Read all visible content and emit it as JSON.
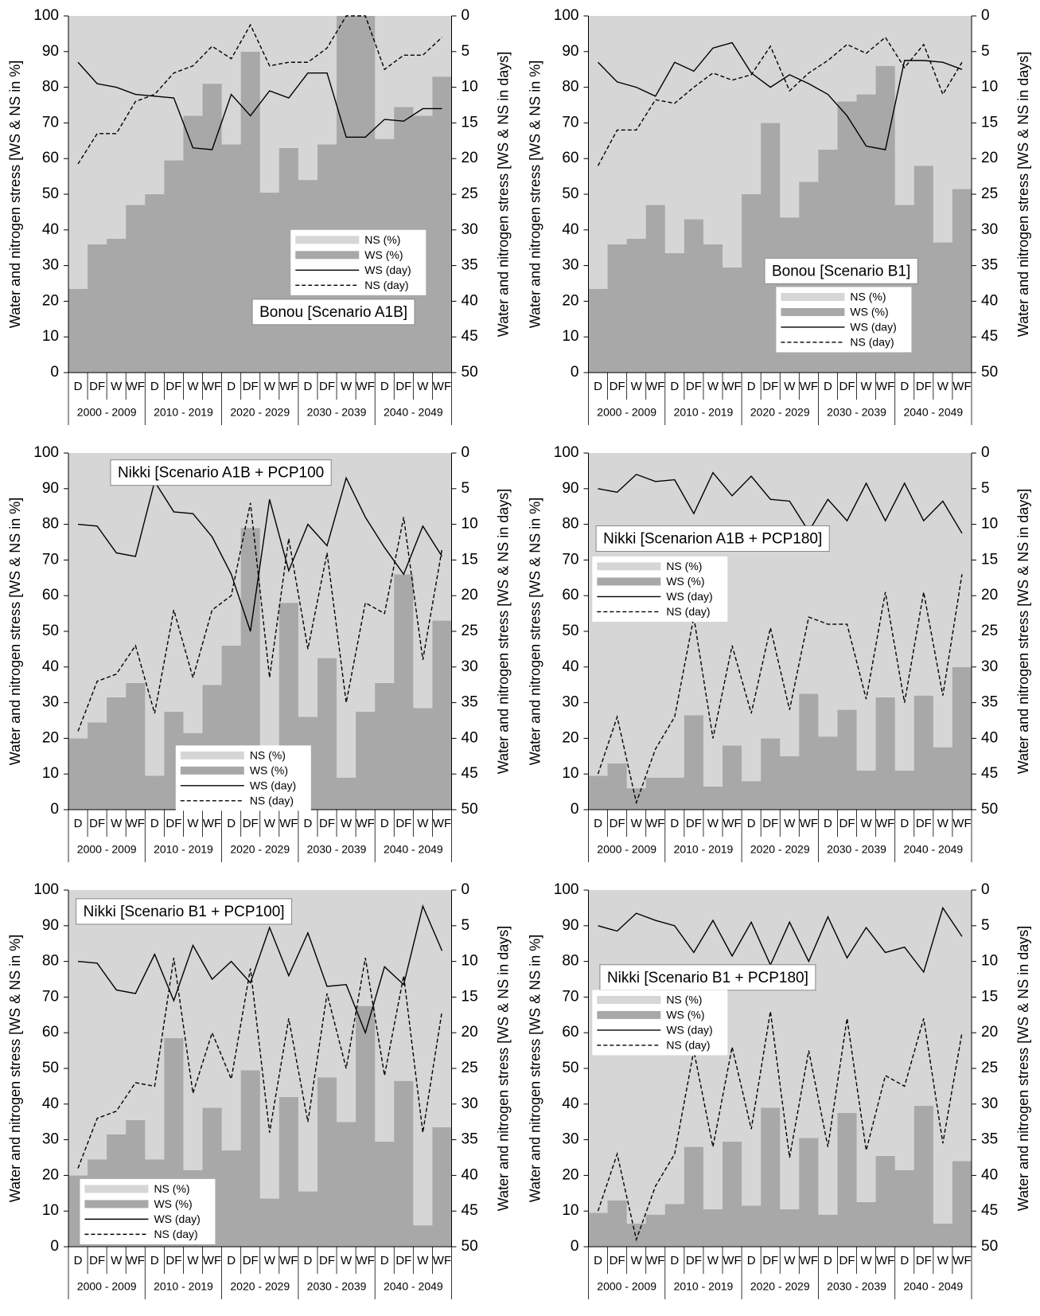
{
  "chart_data": [
    {
      "type": "bar",
      "stacked": true,
      "title": "Bonou [Scenario A1B]",
      "ylabel": "Water and nitrogen stress [WS & NS in %]",
      "y2label": "Water and nitrogen stress [WS & NS in days]",
      "categories": [
        "D",
        "DF",
        "W",
        "WF",
        "D",
        "DF",
        "W",
        "WF",
        "D",
        "DF",
        "W",
        "WF",
        "D",
        "DF",
        "W",
        "WF",
        "D",
        "DF",
        "W",
        "WF"
      ],
      "groups": [
        "2000 - 2009",
        "2010 - 2019",
        "2020 - 2029",
        "2030 - 2039",
        "2040 - 2049"
      ],
      "ylim": [
        0,
        100
      ],
      "yticks": [
        0,
        10,
        20,
        30,
        40,
        50,
        60,
        70,
        80,
        90,
        100
      ],
      "y2lim": [
        50,
        0
      ],
      "y2ticks": [
        0,
        5,
        10,
        15,
        20,
        25,
        30,
        35,
        40,
        45,
        50
      ],
      "series": [
        {
          "name": "NS (%)",
          "type": "bar",
          "color": "#d6d6d6",
          "values": [
            76.5,
            64,
            62.5,
            53,
            50,
            40.5,
            28,
            19,
            36,
            10,
            49.5,
            37,
            46,
            36,
            0,
            0,
            34.5,
            25.5,
            28,
            17
          ]
        },
        {
          "name": "WS (%)",
          "type": "bar",
          "color": "#a8a8a8",
          "values": [
            23.5,
            36,
            37.5,
            47,
            50,
            59.5,
            72,
            81,
            64,
            90,
            50.5,
            63,
            54,
            64,
            100,
            100,
            65.5,
            74.5,
            72,
            83
          ]
        },
        {
          "name": "WS (day)",
          "type": "line",
          "axis": "y2",
          "color": "#000000",
          "dash": "solid",
          "values": [
            6.5,
            9.5,
            10,
            11,
            11.25,
            11.5,
            18.5,
            18.75,
            11,
            14,
            10.5,
            11.5,
            8,
            8,
            17,
            17,
            14.5,
            14.75,
            13,
            13
          ]
        },
        {
          "name": "NS (day)",
          "type": "line",
          "axis": "y2",
          "color": "#000000",
          "dash": "dashed",
          "values": [
            20.75,
            16.5,
            16.5,
            12,
            11,
            8,
            7,
            4.25,
            6,
            1.25,
            7,
            6.5,
            6.5,
            4.5,
            0,
            0,
            7.5,
            5.5,
            5.5,
            3
          ]
        }
      ]
    },
    {
      "type": "bar",
      "stacked": true,
      "title": "Bonou [Scenario B1]",
      "ylabel": "Water and nitrogen stress [WS & NS in %]",
      "y2label": "Water and nitrogen stress [WS & NS in days]",
      "categories": [
        "D",
        "DF",
        "W",
        "WF",
        "D",
        "DF",
        "W",
        "WF",
        "D",
        "DF",
        "W",
        "WF",
        "D",
        "DF",
        "W",
        "WF",
        "D",
        "DF",
        "W",
        "WF"
      ],
      "groups": [
        "2000 - 2009",
        "2010 - 2019",
        "2020 - 2029",
        "2030 - 2039",
        "2040 - 2049"
      ],
      "ylim": [
        0,
        100
      ],
      "yticks": [
        0,
        10,
        20,
        30,
        40,
        50,
        60,
        70,
        80,
        90,
        100
      ],
      "y2lim": [
        50,
        0
      ],
      "y2ticks": [
        0,
        5,
        10,
        15,
        20,
        25,
        30,
        35,
        40,
        45,
        50
      ],
      "series": [
        {
          "name": "NS (%)",
          "type": "bar",
          "color": "#d6d6d6",
          "values": [
            76.5,
            64,
            62.5,
            53,
            66.5,
            57,
            64,
            70.5,
            50,
            30,
            56.5,
            46.5,
            37.5,
            24,
            22,
            14,
            53,
            42,
            63.5,
            48.5
          ]
        },
        {
          "name": "WS (%)",
          "type": "bar",
          "color": "#a8a8a8",
          "values": [
            23.5,
            36,
            37.5,
            47,
            33.5,
            43,
            36,
            29.5,
            50,
            70,
            43.5,
            53.5,
            62.5,
            76,
            78,
            86,
            47,
            58,
            36.5,
            51.5
          ]
        },
        {
          "name": "WS (day)",
          "type": "line",
          "axis": "y2",
          "color": "#000000",
          "dash": "solid",
          "values": [
            6.5,
            9.25,
            10,
            11.25,
            6.5,
            7.75,
            4.5,
            3.75,
            8,
            10,
            8.25,
            9.5,
            11,
            14,
            18.25,
            18.75,
            6.25,
            6.25,
            6.5,
            7.5
          ]
        },
        {
          "name": "NS (day)",
          "type": "line",
          "axis": "y2",
          "color": "#000000",
          "dash": "dashed",
          "values": [
            21,
            16,
            16,
            11.75,
            12.25,
            10,
            8,
            9,
            8.25,
            4.25,
            10.5,
            8,
            6.25,
            4,
            5.25,
            3,
            7.25,
            4,
            11,
            6.5
          ]
        }
      ]
    },
    {
      "type": "bar",
      "stacked": true,
      "title": "Nikki [Scenario A1B + PCP100",
      "ylabel": "Water and nitrogen stress [WS & NS in %]",
      "y2label": "Water and nitrogen stress [WS & NS in days]",
      "categories": [
        "D",
        "DF",
        "W",
        "WF",
        "D",
        "DF",
        "W",
        "WF",
        "D",
        "DF",
        "W",
        "WF",
        "D",
        "DF",
        "W",
        "WF",
        "D",
        "DF",
        "W",
        "WF"
      ],
      "groups": [
        "2000 - 2009",
        "2010 - 2019",
        "2020 - 2029",
        "2030 - 2039",
        "2040 - 2049"
      ],
      "ylim": [
        0,
        100
      ],
      "yticks": [
        0,
        10,
        20,
        30,
        40,
        50,
        60,
        70,
        80,
        90,
        100
      ],
      "y2lim": [
        50,
        0
      ],
      "y2ticks": [
        0,
        5,
        10,
        15,
        20,
        25,
        30,
        35,
        40,
        45,
        50
      ],
      "series": [
        {
          "name": "NS (%)",
          "type": "bar",
          "color": "#d6d6d6",
          "values": [
            80,
            75.5,
            68.5,
            64.5,
            90.5,
            72.5,
            78.5,
            65,
            54,
            21,
            82,
            42,
            74,
            57.5,
            91,
            72.5,
            64.5,
            34,
            71.5,
            47
          ]
        },
        {
          "name": "WS (%)",
          "type": "bar",
          "color": "#a8a8a8",
          "values": [
            20,
            24.5,
            31.5,
            35.5,
            9.5,
            27.5,
            21.5,
            35,
            46,
            79,
            18,
            58,
            26,
            42.5,
            9,
            27.5,
            35.5,
            66,
            28.5,
            53
          ]
        },
        {
          "name": "WS (day)",
          "type": "line",
          "axis": "y2",
          "color": "#000000",
          "dash": "solid",
          "values": [
            10,
            10.25,
            14,
            14.5,
            4,
            8.25,
            8.5,
            11.75,
            17,
            25,
            6.5,
            16.5,
            10,
            13,
            3.5,
            9,
            13.25,
            17,
            10.25,
            14.5
          ]
        },
        {
          "name": "NS (day)",
          "type": "line",
          "axis": "y2",
          "color": "#000000",
          "dash": "dashed",
          "values": [
            39,
            32,
            31,
            27,
            36.5,
            22,
            31.5,
            22,
            20,
            7,
            31.5,
            12,
            27.5,
            14,
            35,
            21,
            22.5,
            9,
            29,
            13.5
          ]
        }
      ]
    },
    {
      "type": "bar",
      "stacked": true,
      "title": "Nikki [Scenarion A1B + PCP180]",
      "ylabel": "Water and nitrogen stress [WS & NS in %]",
      "y2label": "Water and nitrogen stress [WS & NS in days]",
      "categories": [
        "D",
        "DF",
        "W",
        "WF",
        "D",
        "DF",
        "W",
        "WF",
        "D",
        "DF",
        "W",
        "WF",
        "D",
        "DF",
        "W",
        "WF",
        "D",
        "DF",
        "W",
        "WF"
      ],
      "groups": [
        "2000 - 2009",
        "2010 - 2019",
        "2020 - 2029",
        "2030 - 2039",
        "2040 - 2049"
      ],
      "ylim": [
        0,
        100
      ],
      "yticks": [
        0,
        10,
        20,
        30,
        40,
        50,
        60,
        70,
        80,
        90,
        100
      ],
      "y2lim": [
        50,
        0
      ],
      "y2ticks": [
        0,
        5,
        10,
        15,
        20,
        25,
        30,
        35,
        40,
        45,
        50
      ],
      "series": [
        {
          "name": "NS (%)",
          "type": "bar",
          "color": "#d6d6d6",
          "values": [
            90.5,
            87,
            94,
            91,
            91,
            73.5,
            93.5,
            82,
            92,
            80,
            85,
            67.5,
            79.5,
            72,
            89,
            68.5,
            89,
            68,
            82.5,
            60
          ]
        },
        {
          "name": "WS (%)",
          "type": "bar",
          "color": "#a8a8a8",
          "values": [
            9.5,
            13,
            6,
            9,
            9,
            26.5,
            6.5,
            18,
            8,
            20,
            15,
            32.5,
            20.5,
            28,
            11,
            31.5,
            11,
            32,
            17.5,
            40
          ]
        },
        {
          "name": "WS (day)",
          "type": "line",
          "axis": "y2",
          "color": "#000000",
          "dash": "solid",
          "values": [
            5,
            5.5,
            3,
            4,
            3.75,
            8.5,
            2.75,
            6,
            3.25,
            6.5,
            6.75,
            11,
            6.5,
            9.5,
            4.25,
            9.5,
            4.25,
            9.5,
            6.75,
            11.25
          ]
        },
        {
          "name": "NS (day)",
          "type": "line",
          "axis": "y2",
          "color": "#000000",
          "dash": "dashed",
          "values": [
            45,
            37,
            49,
            41.5,
            37,
            23,
            40,
            27,
            36.5,
            24.5,
            36,
            23,
            24,
            24,
            34.5,
            19.5,
            35,
            19.5,
            34,
            17
          ]
        }
      ]
    },
    {
      "type": "bar",
      "stacked": true,
      "title": "Nikki [Scenario B1 + PCP100]",
      "ylabel": "Water and nitrogen stress [WS & NS in %]",
      "y2label": "Water and nitrogen stress [WS & NS in days]",
      "categories": [
        "D",
        "DF",
        "W",
        "WF",
        "D",
        "DF",
        "W",
        "WF",
        "D",
        "DF",
        "W",
        "WF",
        "D",
        "DF",
        "W",
        "WF",
        "D",
        "DF",
        "W",
        "WF"
      ],
      "groups": [
        "2000 - 2009",
        "2010 - 2019",
        "2020 - 2029",
        "2030 - 2039",
        "2040 - 2049"
      ],
      "ylim": [
        0,
        100
      ],
      "yticks": [
        0,
        10,
        20,
        30,
        40,
        50,
        60,
        70,
        80,
        90,
        100
      ],
      "y2lim": [
        50,
        0
      ],
      "y2ticks": [
        0,
        5,
        10,
        15,
        20,
        25,
        30,
        35,
        40,
        45,
        50
      ],
      "series": [
        {
          "name": "NS (%)",
          "type": "bar",
          "color": "#d6d6d6",
          "values": [
            80,
            75.5,
            68.5,
            64.5,
            75.5,
            41.5,
            78.5,
            61,
            73,
            50.5,
            86.5,
            58,
            84.5,
            52.5,
            65,
            32.5,
            70.5,
            53.5,
            94,
            66.5
          ]
        },
        {
          "name": "WS (%)",
          "type": "bar",
          "color": "#a8a8a8",
          "values": [
            20,
            24.5,
            31.5,
            35.5,
            24.5,
            58.5,
            21.5,
            39,
            27,
            49.5,
            13.5,
            42,
            15.5,
            47.5,
            35,
            67.5,
            29.5,
            46.5,
            6,
            33.5
          ]
        },
        {
          "name": "WS (day)",
          "type": "line",
          "axis": "y2",
          "color": "#000000",
          "dash": "solid",
          "values": [
            10,
            10.25,
            14,
            14.5,
            9,
            15.5,
            7.75,
            12.5,
            10,
            13,
            5.25,
            12,
            6,
            13.5,
            13.25,
            20,
            10.75,
            13.25,
            2.25,
            8.5
          ]
        },
        {
          "name": "NS (day)",
          "type": "line",
          "axis": "y2",
          "color": "#000000",
          "dash": "dashed",
          "values": [
            39,
            32,
            31,
            27,
            27.5,
            9.5,
            28.5,
            20,
            26.5,
            11,
            34,
            18,
            32.5,
            14.5,
            25,
            9.5,
            26,
            12,
            34,
            17
          ]
        }
      ]
    },
    {
      "type": "bar",
      "stacked": true,
      "title": "Nikki [Scenario B1 + PCP180]",
      "ylabel": "Water and nitrogen stress [WS & NS in %]",
      "y2label": "Water and nitrogen stress [WS & NS in days]",
      "categories": [
        "D",
        "DF",
        "W",
        "WF",
        "D",
        "DF",
        "W",
        "WF",
        "D",
        "DF",
        "W",
        "WF",
        "D",
        "DF",
        "W",
        "WF",
        "D",
        "DF",
        "W",
        "WF"
      ],
      "groups": [
        "2000 - 2009",
        "2010 - 2019",
        "2020 - 2029",
        "2030 - 2039",
        "2040 - 2049"
      ],
      "ylim": [
        0,
        100
      ],
      "yticks": [
        0,
        10,
        20,
        30,
        40,
        50,
        60,
        70,
        80,
        90,
        100
      ],
      "y2lim": [
        50,
        0
      ],
      "y2ticks": [
        0,
        5,
        10,
        15,
        20,
        25,
        30,
        35,
        40,
        45,
        50
      ],
      "series": [
        {
          "name": "NS (%)",
          "type": "bar",
          "color": "#d6d6d6",
          "values": [
            90.5,
            87,
            93.5,
            91,
            88,
            72,
            89.5,
            70.5,
            88.5,
            61,
            89.5,
            69.5,
            91,
            62.5,
            87.5,
            74.5,
            78.5,
            60.5,
            93.5,
            76
          ]
        },
        {
          "name": "WS (%)",
          "type": "bar",
          "color": "#a8a8a8",
          "values": [
            9.5,
            13,
            6.5,
            9,
            12,
            28,
            10.5,
            29.5,
            11.5,
            39,
            10.5,
            30.5,
            9,
            37.5,
            12.5,
            25.5,
            21.5,
            39.5,
            6.5,
            24
          ]
        },
        {
          "name": "WS (day)",
          "type": "line",
          "axis": "y2",
          "color": "#000000",
          "dash": "solid",
          "values": [
            5,
            5.75,
            3.25,
            4.25,
            5,
            8.75,
            4.25,
            9.25,
            4.5,
            10.5,
            4.5,
            10,
            3.75,
            9.5,
            5.25,
            8.75,
            8,
            11.5,
            2.5,
            6.5
          ]
        },
        {
          "name": "NS (day)",
          "type": "line",
          "axis": "y2",
          "color": "#000000",
          "dash": "dashed",
          "values": [
            45,
            37,
            49,
            41.5,
            37,
            22.5,
            36,
            22,
            33.5,
            17,
            37.5,
            22.5,
            36,
            18,
            36.5,
            26,
            27.5,
            18,
            35.5,
            20
          ]
        }
      ]
    }
  ]
}
